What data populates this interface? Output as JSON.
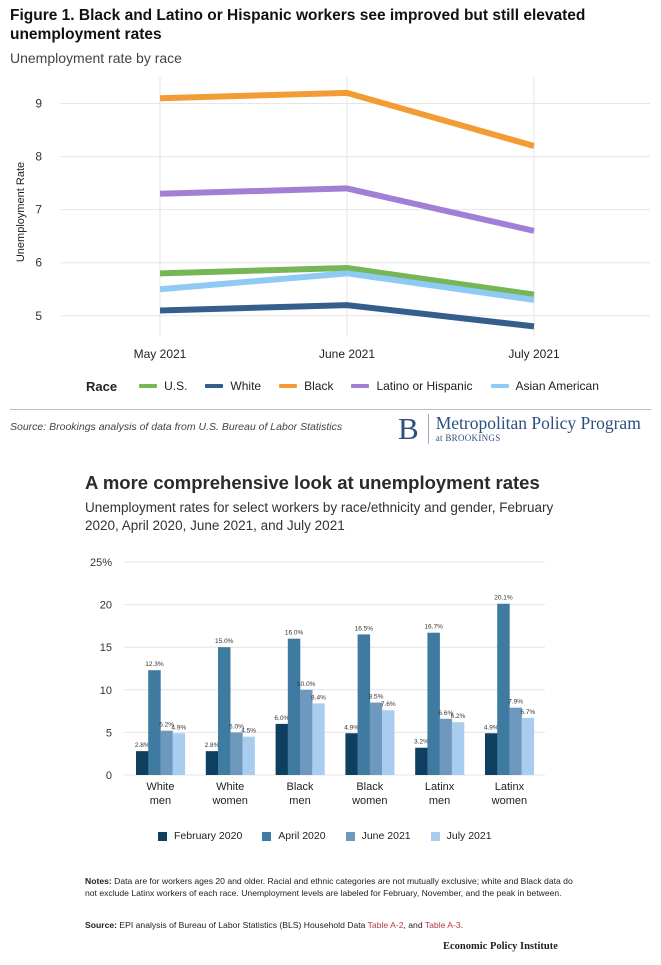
{
  "figure1": {
    "title": "Figure 1. Black and Latino or Hispanic workers see improved but still elevated unemployment rates",
    "subtitle": "Unemployment rate by race",
    "legend_title": "Race",
    "source": "Source: Brookings analysis of data from U.S. Bureau of Labor Statistics",
    "logo": {
      "letter": "B",
      "name": "Metropolitan Policy Program",
      "sub": "at BROOKINGS"
    }
  },
  "figure2": {
    "title": "A more comprehensive look at unemployment rates",
    "subtitle": "Unemployment rates for select workers by race/ethnicity and gender, February 2020, April 2020, June 2021, and July 2021",
    "notes_label": "Notes:",
    "notes_text": "Data are for workers ages 20 and older. Racial and ethnic categories are not mutually exclusive; white and Black data do not exclude Latinx workers of each race. Unemployment levels are labeled for February, November, and the peak in between.",
    "source_label": "Source:",
    "source_text": "EPI analysis of Bureau of Labor Statistics (BLS) Household Data",
    "source_link1": "Table A-2",
    "source_mid": ", and",
    "source_link2": "Table A-3",
    "source_end": ".",
    "logo": "Economic Policy Institute"
  },
  "chart_data": [
    {
      "type": "line",
      "title": "Figure 1. Black and Latino or Hispanic workers see improved but still elevated unemployment rates",
      "subtitle": "Unemployment rate by race",
      "categories": [
        "May 2021",
        "June 2021",
        "July 2021"
      ],
      "ylabel": "Unemployment Rate",
      "ylim": [
        4.6,
        9.5
      ],
      "yticks": [
        5,
        6,
        7,
        8,
        9
      ],
      "grid": true,
      "legend_title": "Race",
      "legend_position": "bottom",
      "series": [
        {
          "name": "U.S.",
          "color": "#77b657",
          "values": [
            5.8,
            5.9,
            5.4
          ]
        },
        {
          "name": "White",
          "color": "#355e8d",
          "values": [
            5.1,
            5.2,
            4.8
          ]
        },
        {
          "name": "Black",
          "color": "#f39c35",
          "values": [
            9.1,
            9.2,
            8.2
          ]
        },
        {
          "name": "Latino or Hispanic",
          "color": "#a17fd5",
          "values": [
            7.3,
            7.4,
            6.6
          ]
        },
        {
          "name": "Asian American",
          "color": "#8ecaf3",
          "values": [
            5.5,
            5.8,
            5.3
          ]
        }
      ]
    },
    {
      "type": "bar",
      "title": "A more comprehensive look at unemployment rates",
      "subtitle": "Unemployment rates for select workers by race/ethnicity and gender, February 2020, April 2020, June 2021, and July 2021",
      "categories": [
        "White men",
        "White women",
        "Black men",
        "Black women",
        "Latinx men",
        "Latinx women"
      ],
      "ylim": [
        0,
        25
      ],
      "yticks": [
        "0",
        "5",
        "10",
        "15",
        "20",
        "25%"
      ],
      "grid": true,
      "legend_position": "bottom",
      "series": [
        {
          "name": "February 2020",
          "color": "#0f3f5f",
          "values": [
            2.8,
            2.8,
            6.0,
            4.9,
            3.2,
            4.9
          ],
          "labels": [
            "2.8%",
            "2.8%",
            "6.0%",
            "4.9%",
            "3.2%",
            "4.9%"
          ]
        },
        {
          "name": "April 2020",
          "color": "#3f7aa0",
          "values": [
            12.3,
            15.0,
            16.0,
            16.5,
            16.7,
            20.1
          ],
          "labels": [
            "12.3%",
            "15.0%",
            "16.0%",
            "16.5%",
            "16.7%",
            "20.1%"
          ]
        },
        {
          "name": "June 2021",
          "color": "#6f98bf",
          "values": [
            5.2,
            5.0,
            10.0,
            8.5,
            6.6,
            7.9
          ],
          "labels": [
            "5.2%",
            "5.0%",
            "10.0%",
            "8.5%",
            "6.6%",
            "7.9%"
          ]
        },
        {
          "name": "July 2021",
          "color": "#a8cdee",
          "values": [
            4.9,
            4.5,
            8.4,
            7.6,
            6.2,
            6.7
          ],
          "labels": [
            "4.9%",
            "4.5%",
            "8.4%",
            "7.6%",
            "6.2%",
            "6.7%"
          ]
        }
      ]
    }
  ]
}
